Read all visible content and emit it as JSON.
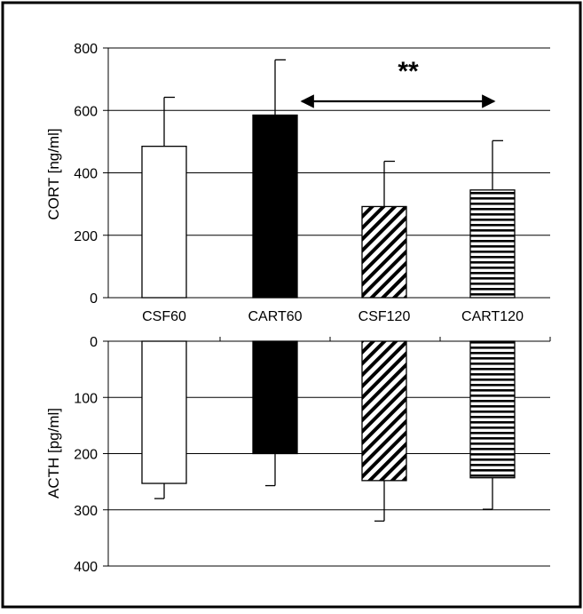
{
  "chart_data": [
    {
      "type": "bar",
      "categories": [
        "CSF60",
        "CART60",
        "CSF120",
        "CART120"
      ],
      "values": [
        485,
        585,
        292,
        345
      ],
      "errors": [
        157,
        177,
        145,
        158
      ],
      "ylabel": "CORT [ng/ml]",
      "ylim": [
        0,
        800
      ],
      "yticks": [
        "0",
        "200",
        "400",
        "600",
        "800"
      ],
      "grid": true,
      "annotation": {
        "text": "**",
        "from_category": "CART60",
        "to_category": "CART120"
      }
    },
    {
      "type": "bar",
      "categories": [
        "CSF60",
        "CART60",
        "CSF120",
        "CART120"
      ],
      "values": [
        253,
        200,
        248,
        243
      ],
      "errors": [
        27,
        57,
        72,
        56
      ],
      "ylabel": "ACTH [pg/ml]",
      "ylim": [
        0,
        400
      ],
      "yticks": [
        "0",
        "100",
        "200",
        "300",
        "400"
      ],
      "inverted": true,
      "grid": true
    }
  ],
  "colors": {
    "CSF60": "#ffffff",
    "CART60": "#000000",
    "CSF120": "diagonal-hatch",
    "CART120": "horizontal-hatch"
  }
}
